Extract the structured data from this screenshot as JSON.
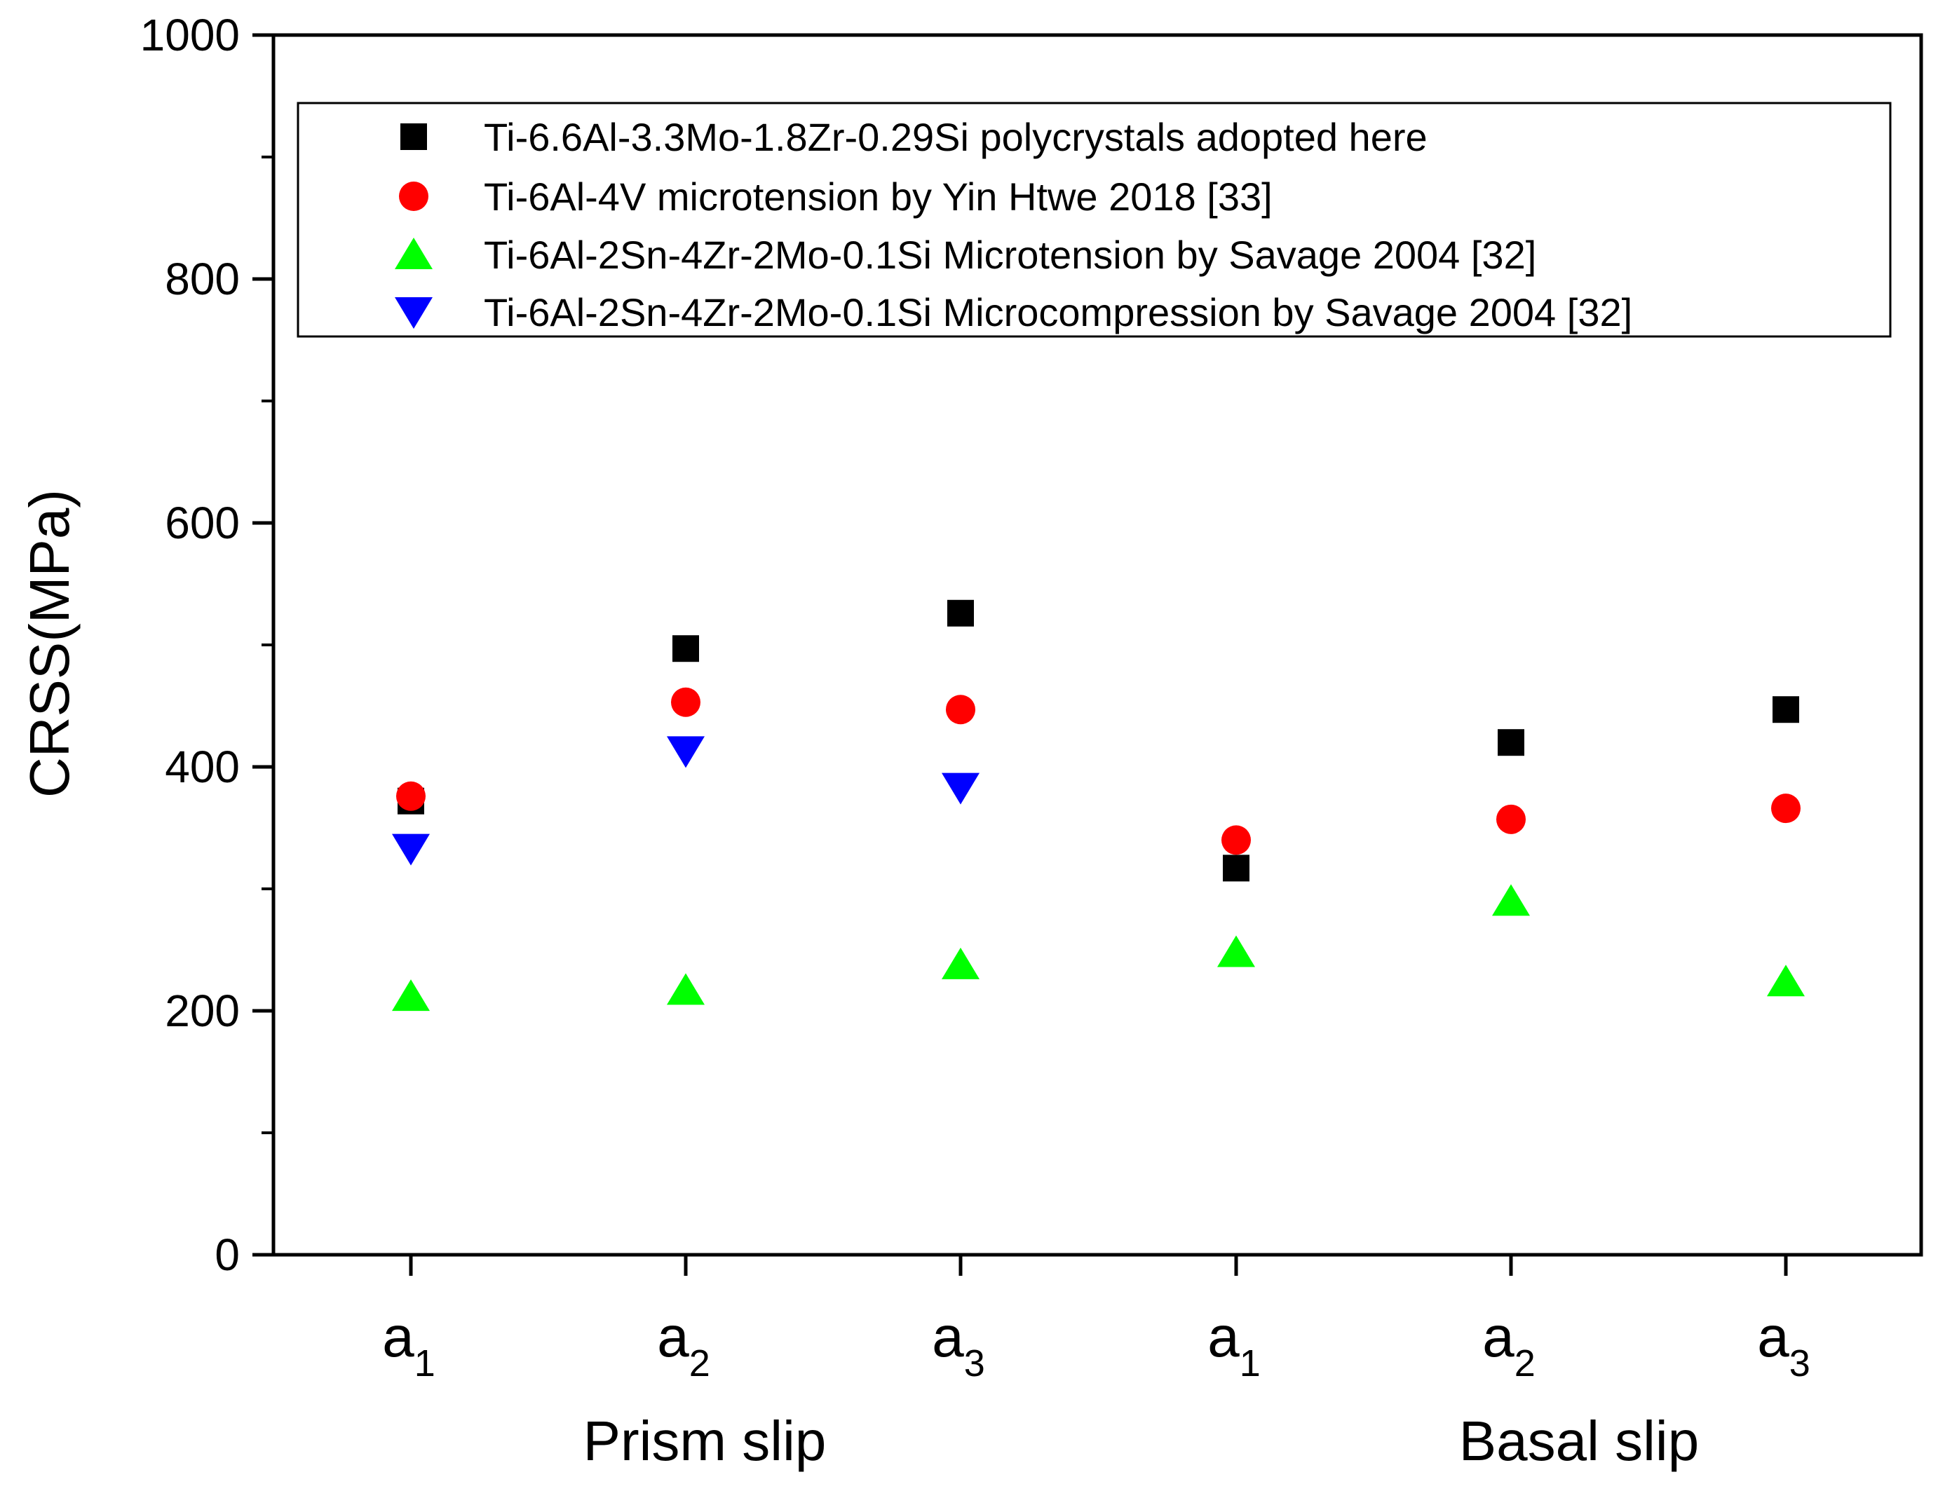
{
  "chart_data": {
    "type": "scatter",
    "title": "",
    "xlabel": "",
    "ylabel": "CRSS(MPa)",
    "ylim": [
      0,
      1000
    ],
    "yticks": [
      0,
      200,
      400,
      600,
      800,
      1000
    ],
    "categories": [
      {
        "base": "a",
        "sub": "1"
      },
      {
        "base": "a",
        "sub": "2"
      },
      {
        "base": "a",
        "sub": "3"
      },
      {
        "base": "a",
        "sub": "1"
      },
      {
        "base": "a",
        "sub": "2"
      },
      {
        "base": "a",
        "sub": "3"
      }
    ],
    "groups": [
      {
        "label": "Prism slip",
        "categories": [
          0,
          1,
          2
        ]
      },
      {
        "label": "Basal slip",
        "categories": [
          3,
          4,
          5
        ]
      }
    ],
    "series": [
      {
        "name": "Ti-6.6Al-3.3Mo-1.8Zr-0.29Si polycrystals adopted here",
        "marker": "square",
        "color": "#000000",
        "values": [
          372,
          497,
          526,
          317,
          420,
          447
        ]
      },
      {
        "name": "Ti-6Al-4V microtension by Yin Htwe 2018 [33]",
        "marker": "circle",
        "color": "#ff0000",
        "values": [
          376,
          453,
          447,
          340,
          357,
          366
        ]
      },
      {
        "name": "Ti-6Al-2Sn-4Zr-2Mo-0.1Si Microtension by Savage 2004 [32]",
        "marker": "triangle-up",
        "color": "#00ff00",
        "values": [
          212,
          217,
          238,
          248,
          290,
          224
        ]
      },
      {
        "name": "Ti-6Al-2Sn-4Zr-2Mo-0.1Si Microcompression by Savage 2004 [32]",
        "marker": "triangle-down",
        "color": "#0000ff",
        "values": [
          333,
          413,
          383,
          null,
          null,
          null
        ]
      }
    ],
    "legend_position": "top"
  }
}
